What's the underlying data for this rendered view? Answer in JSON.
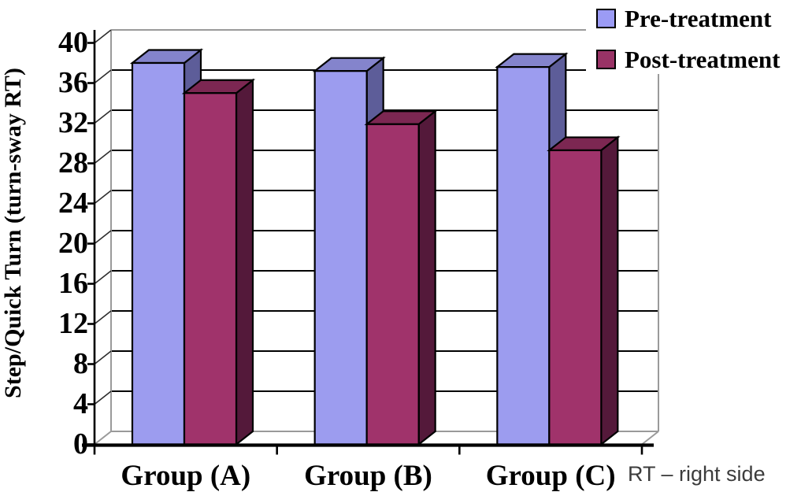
{
  "figure": {
    "annotation": "RT – right side"
  },
  "chart_data": {
    "type": "bar",
    "projection": "3d",
    "title": "",
    "categories": [
      "Group (A)",
      "Group (B)",
      "Group (C)"
    ],
    "series": [
      {
        "name": "Pre-treatment",
        "values": [
          38,
          37.2,
          37.6
        ],
        "marker_color": "#9b9bf5",
        "faces": {
          "front": "#9c9cef",
          "top": "#8484cc",
          "side": "#5d5d99"
        }
      },
      {
        "name": "Post-treatment",
        "values": [
          35,
          31.9,
          29.3
        ],
        "marker_color": "#993366",
        "faces": {
          "front": "#a0336b",
          "top": "#7c2752",
          "side": "#54193a"
        }
      }
    ],
    "xlabel": "",
    "ylabel": "Step/Quick Turn (turn-sway RT)",
    "ylim": [
      0,
      40
    ],
    "ytick_step": 4,
    "yticks": [
      0,
      4,
      8,
      12,
      16,
      20,
      24,
      28,
      32,
      36,
      40
    ],
    "grid": true,
    "legend_position": "top-right",
    "gridline_color": "#000000",
    "wall_edge_color": "#9a9a9a",
    "axis_color": "#000000",
    "annotation_color": "#3c3c3c"
  }
}
